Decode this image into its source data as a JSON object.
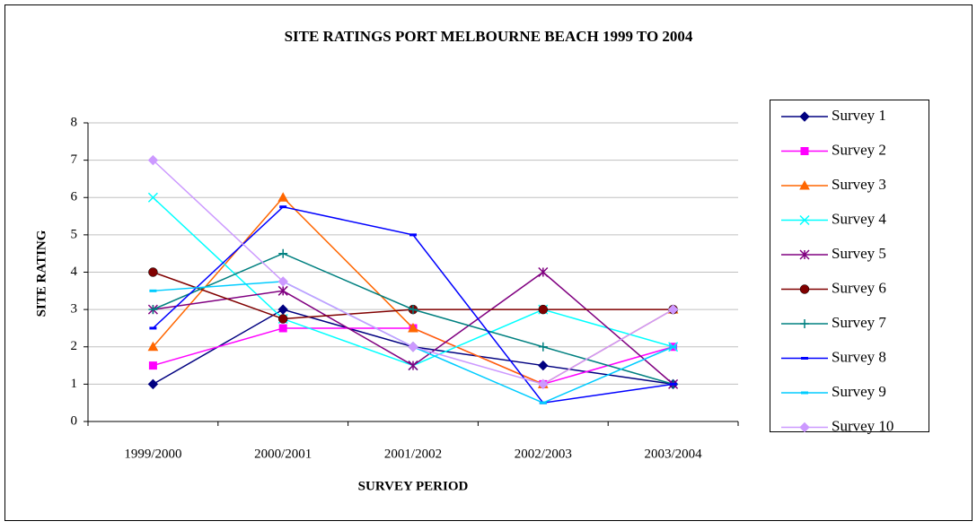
{
  "chart_data": {
    "type": "line",
    "title": "SITE RATINGS PORT MELBOURNE BEACH 1999 TO 2004",
    "x_label": "SURVEY PERIOD",
    "y_label": "SITE RATING",
    "categories": [
      "1999/2000",
      "2000/2001",
      "2001/2002",
      "2002/2003",
      "2003/2004"
    ],
    "ylim": [
      0,
      8
    ],
    "yticks": [
      0,
      1,
      2,
      3,
      4,
      5,
      6,
      7,
      8
    ],
    "grid": true,
    "legend": "right",
    "series": [
      {
        "name": "Survey 1",
        "color": "#000080",
        "marker": "diamond",
        "values": [
          1,
          3,
          2,
          1.5,
          1
        ]
      },
      {
        "name": "Survey 2",
        "color": "#ff00ff",
        "marker": "square",
        "values": [
          1.5,
          2.5,
          2.5,
          1,
          2
        ]
      },
      {
        "name": "Survey 3",
        "color": "#ff6600",
        "marker": "triangle",
        "values": [
          2,
          6,
          2.5,
          1,
          3
        ]
      },
      {
        "name": "Survey 4",
        "color": "#00ffff",
        "marker": "x",
        "values": [
          6,
          2.75,
          1.5,
          3,
          2
        ]
      },
      {
        "name": "Survey 5",
        "color": "#800080",
        "marker": "star",
        "values": [
          3,
          3.5,
          1.5,
          4,
          1
        ]
      },
      {
        "name": "Survey 6",
        "color": "#800000",
        "marker": "circle",
        "values": [
          4,
          2.75,
          3,
          3,
          3
        ]
      },
      {
        "name": "Survey 7",
        "color": "#008080",
        "marker": "plus",
        "values": [
          3,
          4.5,
          3,
          2,
          1
        ]
      },
      {
        "name": "Survey 8",
        "color": "#0000ff",
        "marker": "dash",
        "values": [
          2.5,
          5.75,
          5,
          0.5,
          1
        ]
      },
      {
        "name": "Survey 9",
        "color": "#00ccff",
        "marker": "dash",
        "values": [
          3.5,
          3.75,
          2,
          0.5,
          2
        ]
      },
      {
        "name": "Survey 10",
        "color": "#cc99ff",
        "marker": "diamond",
        "values": [
          7,
          3.75,
          2,
          1,
          3
        ]
      }
    ]
  }
}
